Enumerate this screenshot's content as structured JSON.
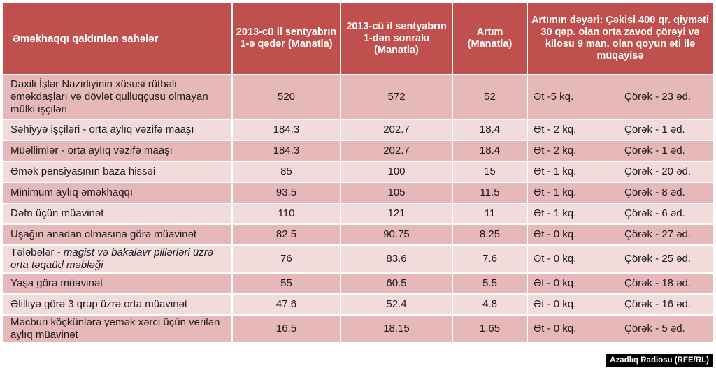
{
  "chart_data": {
    "type": "table",
    "columns": [
      "Əməkhaqqı qaldırılan sahələr",
      "2013-cü il sentyabrın 1-ə qədər (Manatla)",
      "2013-cü il sentyabrın 1-dən sonrakı (Manatla)",
      "Artım (Manatla)",
      "Artımın dəyəri: Çəkisi 400 qr. qiyməti 30 qəp. olan orta zavod çörəyi və kilosu 9 man. olan qoyun əti ilə müqayisə"
    ],
    "rows": [
      {
        "sector": "Daxili İşlər Nazirliyinin xüsusi rütbəli əməkdaşları və dövlət qulluqçusu olmayan mülki işçiləri",
        "sector_italic": "",
        "before": "520",
        "after": "572",
        "increase": "52",
        "meat": "Ət  -5 kq.",
        "bread": "Çörək - 23 əd."
      },
      {
        "sector": "Səhiyyə işçiləri  - orta aylıq vəzifə maaşı",
        "sector_italic": "",
        "before": "184.3",
        "after": "202.7",
        "increase": "18.4",
        "meat": "Ət - 2 kq.",
        "bread": "Çörək - 1 əd."
      },
      {
        "sector": "Müəllimlər - orta aylıq vəzifə maaşı",
        "sector_italic": "",
        "before": "184.3",
        "after": "202.7",
        "increase": "18.4",
        "meat": "Ət - 2 kq.",
        "bread": "Çörək - 1 əd."
      },
      {
        "sector": "Əmək pensiyasının baza hissəi",
        "sector_italic": "",
        "before": "85",
        "after": "100",
        "increase": "15",
        "meat": "Ət - 1 kq.",
        "bread": "Çörək - 20 əd."
      },
      {
        "sector": "Minimum aylıq əməkhaqqı",
        "sector_italic": "",
        "before": "93.5",
        "after": "105",
        "increase": "11.5",
        "meat": "Ət - 1 kq.",
        "bread": "Çörək - 8 əd."
      },
      {
        "sector": "Dəfn üçün müavinət",
        "sector_italic": "",
        "before": "110",
        "after": "121",
        "increase": "11",
        "meat": "Ət - 1 kq.",
        "bread": "Çörək - 6 əd."
      },
      {
        "sector": "Uşağın anadan olmasına görə müavinət",
        "sector_italic": "",
        "before": "82.5",
        "after": "90.75",
        "increase": "8.25",
        "meat": "Ət - 0 kq.",
        "bread": "Çörək - 27 əd."
      },
      {
        "sector": "Tələbələr - ",
        "sector_italic": "magist və bakalavr pillərləri üzrə orta təqaüd məbləği",
        "before": "76",
        "after": "83.6",
        "increase": "7.6",
        "meat": "Ət - 0 kq.",
        "bread": "Çörək - 25 əd."
      },
      {
        "sector": "Yaşa görə müavinət",
        "sector_italic": "",
        "before": "55",
        "after": "60.5",
        "increase": "5.5",
        "meat": "Ət - 0 kq.",
        "bread": "Çörək -  18 əd."
      },
      {
        "sector": "Əlilliyə görə 3 qrup üzrə orta müavinət",
        "sector_italic": "",
        "before": "47.6",
        "after": "52.4",
        "increase": "4.8",
        "meat": "Ət - 0 kq.",
        "bread": "Çörək - 16 əd."
      },
      {
        "sector": "Məcburi köçkünlərə yemək xərci üçün verilən aylıq müavinət",
        "sector_italic": "",
        "before": "16.5",
        "after": "18.15",
        "increase": "1.65",
        "meat": "Ət - 0 kq.",
        "bread": "Çörək - 5 əd."
      }
    ]
  },
  "credit": "Azadlıq Radiosu (RFE/RL)",
  "colors": {
    "header": "#c0504d",
    "row_dark": "#e6b8b7",
    "row_light": "#f2dcdb"
  }
}
